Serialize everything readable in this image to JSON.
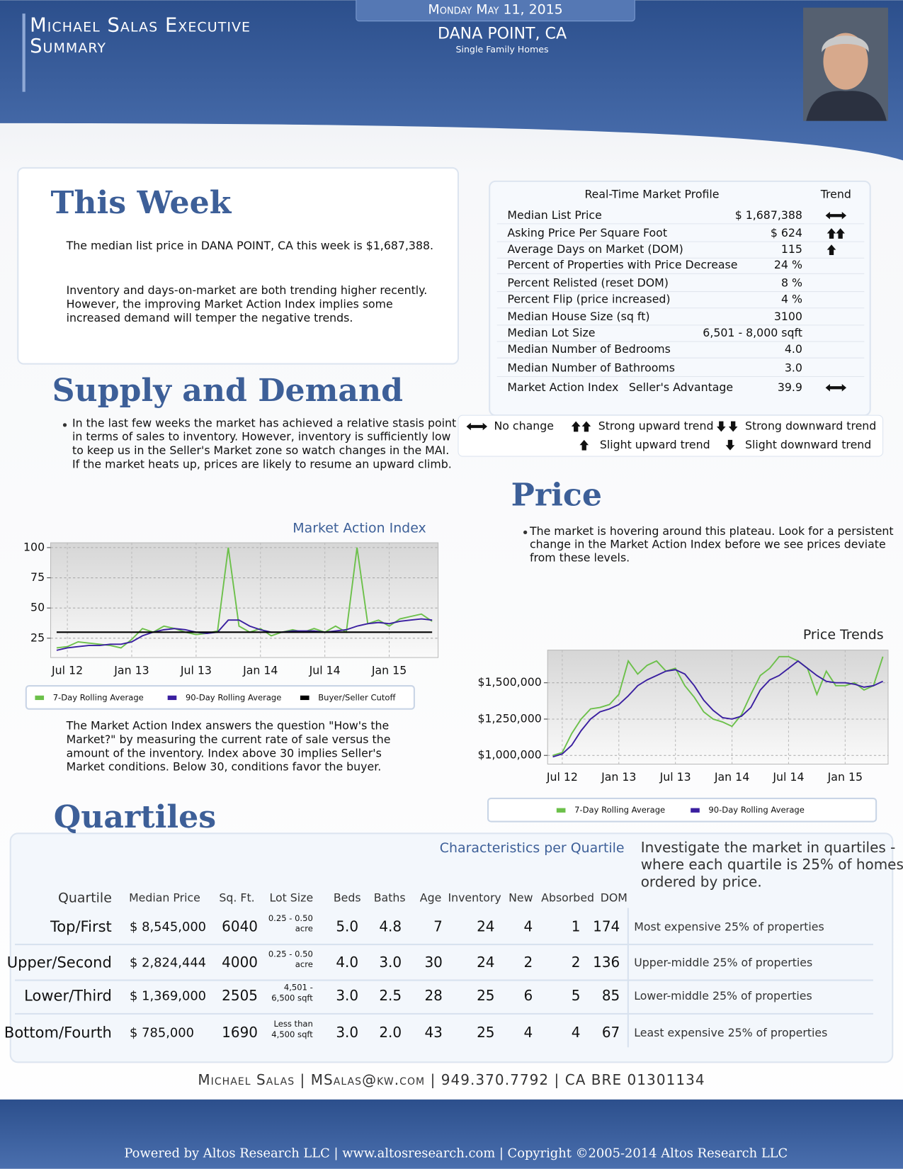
{
  "header": {
    "title_lines": [
      "Michael Salas Executive",
      "Summary"
    ],
    "date": "Monday May 11, 2015",
    "location": "DANA POINT, CA",
    "subtitle": "Single Family Homes"
  },
  "this_week": {
    "heading": "This Week",
    "paragraph1": "The median list price in DANA POINT, CA this week is $1,687,388.",
    "paragraph2": [
      "Inventory and days-on-market are both trending higher recently.",
      "However, the improving Market Action Index implies some",
      "increased demand will temper the negative trends."
    ]
  },
  "profile": {
    "title": "Real-Time Market Profile",
    "trend_header": "Trend",
    "rows": [
      {
        "label": "Median List Price",
        "value": "$ 1,687,388"
      },
      {
        "label": "Asking Price Per Square Foot",
        "value": "$ 624"
      },
      {
        "label": "Average Days on Market (DOM)",
        "value": "115"
      },
      {
        "label": "Percent of Properties with Price Decrease",
        "value": "24 %"
      },
      {
        "label": "Percent Relisted (reset DOM)",
        "value": "8 %"
      },
      {
        "label": "Percent Flip (price increased)",
        "value": "4 %"
      },
      {
        "label": "Median House Size (sq ft)",
        "value": "3100"
      },
      {
        "label": "Median Lot Size",
        "value": "6,501 - 8,000 sqft"
      },
      {
        "label": "Median Number of Bedrooms",
        "value": "4.0"
      },
      {
        "label": "Median Number of Bathrooms",
        "value": "3.0"
      },
      {
        "label": "Market Action Index",
        "note": "Seller's Advantage",
        "value": "39.9"
      }
    ],
    "legend": {
      "no_change": "No change",
      "strong_up": "Strong upward trend",
      "strong_down": "Strong downward trend",
      "slight_up": "Slight upward trend",
      "slight_down": "Slight downward trend"
    }
  },
  "supply_demand": {
    "heading": "Supply and Demand",
    "lines": [
      "In the last few weeks the market has achieved a relative stasis point",
      "in terms of sales to inventory.  However, inventory is sufficiently low",
      "to keep us in the Seller's Market zone so watch changes in the MAI.",
      "If the market heats up, prices are likely to resume an upward climb."
    ]
  },
  "mai_chart": {
    "type": "line",
    "title": "Market Action Index",
    "categories": [
      null,
      "Jul 12",
      null,
      null,
      null,
      null,
      null,
      "Jan 13",
      null,
      null,
      null,
      null,
      null,
      "Jul 13",
      null,
      null,
      null,
      null,
      null,
      "Jan 14",
      null,
      null,
      null,
      null,
      null,
      "Jul 14",
      null,
      null,
      null,
      null,
      null,
      "Jan 15",
      null,
      null,
      null,
      null
    ],
    "series": [
      {
        "name": "7-Day Rolling Average",
        "color": "#6cc04a",
        "values": [
          17,
          18,
          22,
          21,
          20,
          19,
          17,
          24,
          33,
          30,
          35,
          33,
          30,
          28,
          29,
          31,
          100,
          35,
          30,
          33,
          27,
          30,
          32,
          30,
          33,
          30,
          35,
          30,
          100,
          37,
          40,
          35,
          41,
          43,
          45,
          39
        ]
      },
      {
        "name": "90-Day Rolling Average",
        "color": "#3a1fa0",
        "values": [
          15,
          17,
          18,
          19,
          19,
          20,
          20,
          22,
          27,
          30,
          32,
          33,
          32,
          30,
          29,
          30,
          40,
          40,
          35,
          32,
          30,
          30,
          31,
          31,
          31,
          30,
          31,
          32,
          35,
          37,
          38,
          37,
          39,
          40,
          41,
          40
        ]
      },
      {
        "name": "Buyer/Seller Cutoff",
        "color": "#000000",
        "values": [
          30,
          30,
          30,
          30,
          30,
          30,
          30,
          30,
          30,
          30,
          30,
          30,
          30,
          30,
          30,
          30,
          30,
          30,
          30,
          30,
          30,
          30,
          30,
          30,
          30,
          30,
          30,
          30,
          30,
          30,
          30,
          30,
          30,
          30,
          30,
          30
        ]
      }
    ],
    "ylim": [
      9,
      104
    ],
    "yticks": [
      25,
      50,
      75,
      100
    ],
    "grid": true,
    "explanation": [
      "The Market Action Index answers the question \"How's the",
      "Market?\" by measuring the current rate of sale versus the",
      "amount of the inventory.  Index above 30 implies Seller's",
      "Market conditions. Below 30, conditions favor the buyer."
    ]
  },
  "price": {
    "heading": "Price",
    "lines": [
      "The market is hovering around this plateau. Look for a persistent",
      "change in the Market Action Index before we see prices deviate",
      "from these levels."
    ]
  },
  "price_chart": {
    "type": "line",
    "title": "Price Trends",
    "categories": [
      null,
      "Jul 12",
      null,
      null,
      null,
      null,
      null,
      "Jan 13",
      null,
      null,
      null,
      null,
      null,
      "Jul 13",
      null,
      null,
      null,
      null,
      null,
      "Jan 14",
      null,
      null,
      null,
      null,
      null,
      "Jul 14",
      null,
      null,
      null,
      null,
      null,
      "Jan 15",
      null,
      null,
      null,
      null
    ],
    "series": [
      {
        "name": "7-Day Rolling Average",
        "color": "#6cc04a",
        "values": [
          1000000,
          1020000,
          1150000,
          1250000,
          1320000,
          1330000,
          1350000,
          1420000,
          1650000,
          1560000,
          1620000,
          1650000,
          1580000,
          1600000,
          1480000,
          1400000,
          1300000,
          1250000,
          1230000,
          1200000,
          1280000,
          1420000,
          1550000,
          1600000,
          1680000,
          1680000,
          1650000,
          1600000,
          1420000,
          1580000,
          1480000,
          1480000,
          1500000,
          1450000,
          1480000,
          1680000
        ]
      },
      {
        "name": "90-Day Rolling Average",
        "color": "#3a1fa0",
        "values": [
          990000,
          1010000,
          1070000,
          1170000,
          1250000,
          1300000,
          1320000,
          1350000,
          1410000,
          1480000,
          1520000,
          1550000,
          1580000,
          1590000,
          1560000,
          1480000,
          1380000,
          1310000,
          1260000,
          1250000,
          1270000,
          1330000,
          1450000,
          1520000,
          1550000,
          1600000,
          1650000,
          1600000,
          1550000,
          1510000,
          1500000,
          1500000,
          1490000,
          1470000,
          1480000,
          1510000
        ]
      }
    ],
    "ylim": [
      940000,
      1725000
    ],
    "yticks": [
      {
        "value": 1000000,
        "label": "$1,000,000"
      },
      {
        "value": 1250000,
        "label": "$1,250,000"
      },
      {
        "value": 1500000,
        "label": "$1,500,000"
      }
    ],
    "grid": true
  },
  "quartiles": {
    "heading": "Quartiles",
    "subtitle": "Characteristics per Quartile",
    "intro": [
      "Investigate the market in quartiles -",
      "where each quartile is 25% of homes",
      "ordered by price."
    ],
    "columns": [
      "Quartile",
      "Median Price",
      "Sq. Ft.",
      "Lot Size",
      "Beds",
      "Baths",
      "Age",
      "Inventory",
      "New",
      "Absorbed",
      "DOM"
    ],
    "rows": [
      {
        "name": "Top/First",
        "price": "$ 8,545,000",
        "sqft": "6040",
        "lot": [
          "0.25 - 0.50",
          "acre"
        ],
        "beds": "5.0",
        "baths": "4.8",
        "age": "7",
        "inventory": "24",
        "new": "4",
        "absorbed": "1",
        "dom": "174",
        "description": "Most expensive 25% of properties"
      },
      {
        "name": "Upper/Second",
        "price": "$ 2,824,444",
        "sqft": "4000",
        "lot": [
          "0.25 - 0.50",
          "acre"
        ],
        "beds": "4.0",
        "baths": "3.0",
        "age": "30",
        "inventory": "24",
        "new": "2",
        "absorbed": "2",
        "dom": "136",
        "description": "Upper-middle 25% of properties"
      },
      {
        "name": "Lower/Third",
        "price": "$ 1,369,000",
        "sqft": "2505",
        "lot": [
          "4,501 -",
          "6,500 sqft"
        ],
        "beds": "3.0",
        "baths": "2.5",
        "age": "28",
        "inventory": "25",
        "new": "6",
        "absorbed": "5",
        "dom": "85",
        "description": "Lower-middle 25% of properties"
      },
      {
        "name": "Bottom/Fourth",
        "price": "$ 785,000",
        "sqft": "1690",
        "lot": [
          "Less than",
          "4,500 sqft"
        ],
        "beds": "3.0",
        "baths": "2.0",
        "age": "43",
        "inventory": "25",
        "new": "4",
        "absorbed": "4",
        "dom": "67",
        "description": "Least expensive 25% of properties"
      }
    ]
  },
  "footer": {
    "contact": "Michael Salas | MSalas@kw.com | 949.370.7792 | CA BRE 01301134",
    "powered": "Powered by Altos Research LLC | www.altosresearch.com | Copyright ©2005-2014 Altos Research LLC"
  }
}
